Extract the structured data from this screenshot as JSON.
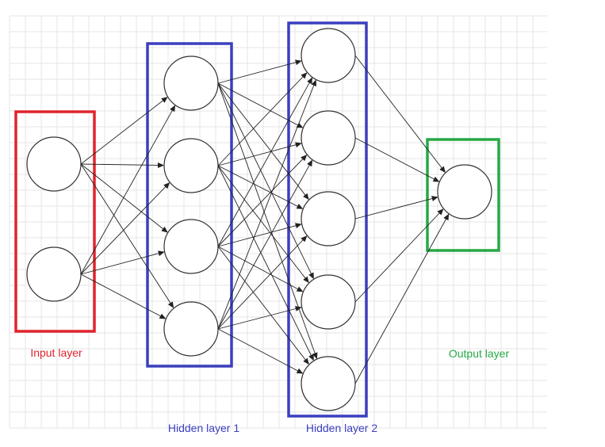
{
  "colors": {
    "input": "#e0242e",
    "hidden": "#3b3fbf",
    "output": "#27a845",
    "grid": "#e6e6e6",
    "node_stroke": "#333333",
    "edge": "#222222"
  },
  "layers": [
    {
      "key": "input",
      "label": "Input layer",
      "nodes": 2,
      "color_key": "input"
    },
    {
      "key": "hidden1",
      "label": "Hidden layer 1",
      "nodes": 4,
      "color_key": "hidden"
    },
    {
      "key": "hidden2",
      "label": "Hidden layer 2",
      "nodes": 5,
      "color_key": "hidden"
    },
    {
      "key": "output",
      "label": "Output layer",
      "nodes": 1,
      "color_key": "output"
    }
  ],
  "connections": "fully-connected"
}
